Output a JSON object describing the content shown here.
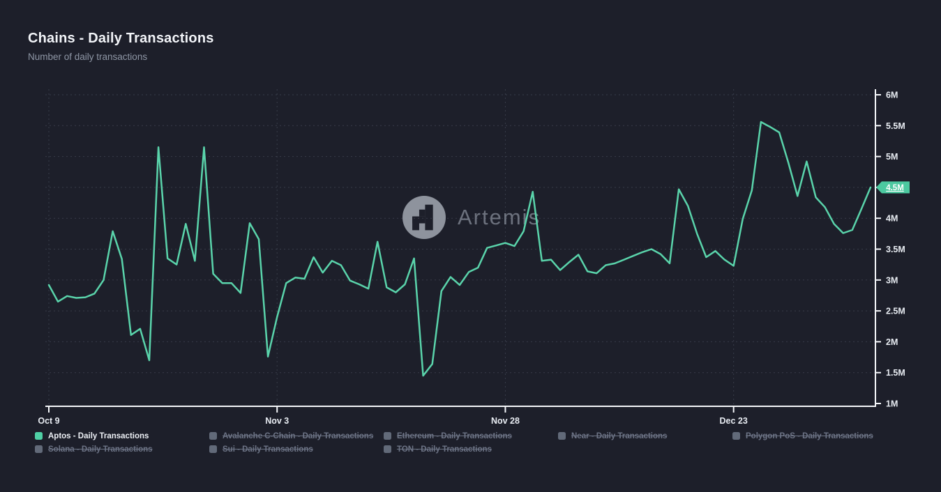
{
  "header": {
    "title": "Chains - Daily Transactions",
    "subtitle": "Number of daily transactions"
  },
  "watermark": {
    "text": "Artemis"
  },
  "colors": {
    "background": "#1d1f2a",
    "accent": "#4fd0a5",
    "line": "#5ad4ab",
    "badge": "#4cc9a0",
    "badge_text": "#ffffff",
    "axis": "#f5f7fa",
    "tick_label": "#e8ecf2",
    "grid": "rgba(155,165,185,0.22)",
    "inactive": "#6d7486"
  },
  "chart_data": {
    "type": "line",
    "title": "Chains - Daily Transactions",
    "subtitle": "Number of daily transactions",
    "unit": "M",
    "ylim": [
      1,
      6
    ],
    "grid": true,
    "legend_position": "bottom",
    "series": [
      {
        "name": "Aptos - Daily Transactions",
        "color": "#5ad4ab",
        "values_millions": [
          2.92,
          2.65,
          2.74,
          2.71,
          2.72,
          2.78,
          3.0,
          3.79,
          3.34,
          2.11,
          2.21,
          1.7,
          5.15,
          3.35,
          3.25,
          3.91,
          3.31,
          5.15,
          3.1,
          2.95,
          2.95,
          2.79,
          3.92,
          3.66,
          1.76,
          2.4,
          2.95,
          3.04,
          3.02,
          3.37,
          3.12,
          3.31,
          3.24,
          2.99,
          2.93,
          2.86,
          3.62,
          2.88,
          2.8,
          2.93,
          3.35,
          1.45,
          1.64,
          2.82,
          3.05,
          2.92,
          3.13,
          3.2,
          3.52,
          3.56,
          3.6,
          3.55,
          3.79,
          4.43,
          3.31,
          3.33,
          3.16,
          3.29,
          3.41,
          3.14,
          3.11,
          3.24,
          3.27,
          3.33,
          3.39,
          3.45,
          3.5,
          3.42,
          3.27,
          4.47,
          4.2,
          3.75,
          3.37,
          3.47,
          3.33,
          3.23,
          3.99,
          4.45,
          5.56,
          5.48,
          5.39,
          4.9,
          4.36,
          4.92,
          4.34,
          4.18,
          3.91,
          3.76,
          3.81,
          4.15,
          4.5
        ]
      }
    ],
    "x_ticks": [
      {
        "label": "Oct 9",
        "index": 0
      },
      {
        "label": "Nov 3",
        "index": 25
      },
      {
        "label": "Nov 28",
        "index": 50
      },
      {
        "label": "Dec 23",
        "index": 75
      }
    ],
    "y_ticks": [
      {
        "label": "6M",
        "value": 6.0
      },
      {
        "label": "5.5M",
        "value": 5.5
      },
      {
        "label": "5M",
        "value": 5.0
      },
      {
        "label": "4.5M",
        "value": 4.5
      },
      {
        "label": "4M",
        "value": 4.0
      },
      {
        "label": "3.5M",
        "value": 3.5
      },
      {
        "label": "3M",
        "value": 3.0
      },
      {
        "label": "2.5M",
        "value": 2.5
      },
      {
        "label": "2M",
        "value": 2.0
      },
      {
        "label": "1.5M",
        "value": 1.5
      },
      {
        "label": "1M",
        "value": 1.0
      }
    ],
    "current_value": {
      "label": "4.5M",
      "value": 4.5
    }
  },
  "legend": {
    "items": [
      {
        "label": "Aptos - Daily Transactions",
        "active": true
      },
      {
        "label": "Avalanche C-Chain - Daily Transactions",
        "active": false
      },
      {
        "label": "Ethereum - Daily Transactions",
        "active": false
      },
      {
        "label": "Near - Daily Transactions",
        "active": false
      },
      {
        "label": "Polygon PoS - Daily Transactions",
        "active": false
      },
      {
        "label": "Solana - Daily Transactions",
        "active": false
      },
      {
        "label": "Sui - Daily Transactions",
        "active": false
      },
      {
        "label": "TON - Daily Transactions",
        "active": false
      }
    ]
  }
}
